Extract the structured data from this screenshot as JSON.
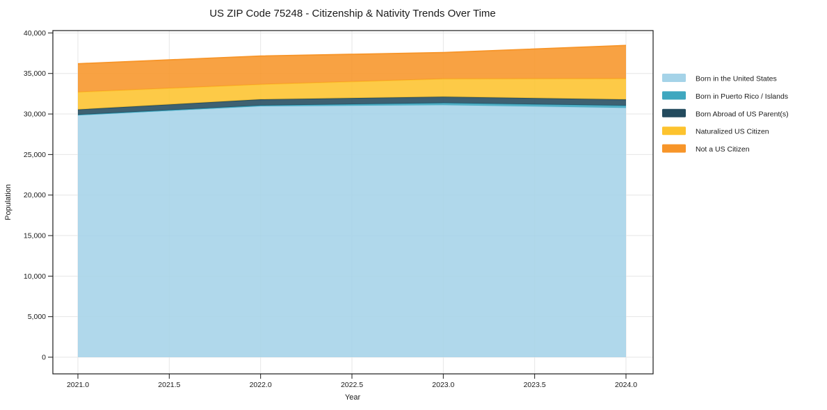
{
  "title": "US ZIP Code 75248 - Citizenship & Nativity Trends Over Time",
  "chart_data": {
    "type": "area",
    "stacked": true,
    "title": "US ZIP Code 75248 - Citizenship & Nativity Trends Over Time",
    "xlabel": "Year",
    "ylabel": "Population",
    "x": [
      2021,
      2022,
      2023,
      2024
    ],
    "series": [
      {
        "name": "Born in the United States",
        "color": "#a5d3e8",
        "values": [
          29850,
          30950,
          31100,
          30750
        ]
      },
      {
        "name": "Born in Puerto Rico / Islands",
        "color": "#3fa7bf",
        "values": [
          50,
          100,
          250,
          280
        ]
      },
      {
        "name": "Born Abroad of US Parent(s)",
        "color": "#234b5e",
        "values": [
          650,
          750,
          780,
          760
        ]
      },
      {
        "name": "Naturalized US Citizen",
        "color": "#fdc32e",
        "values": [
          2150,
          1850,
          2200,
          2570
        ]
      },
      {
        "name": "Not a US Citizen",
        "color": "#f79529",
        "values": [
          3500,
          3500,
          3250,
          4100
        ]
      }
    ],
    "stack_totals": [
      36200,
      37150,
      37580,
      38460
    ],
    "xlim": [
      2021.0,
      2024.0
    ],
    "ylim": [
      0,
      40000
    ],
    "xticks": [
      2021.0,
      2021.5,
      2022.0,
      2022.5,
      2023.0,
      2023.5,
      2024.0
    ],
    "yticks": [
      0,
      5000,
      10000,
      15000,
      20000,
      25000,
      30000,
      35000,
      40000
    ],
    "grid": true,
    "grid_color": "#e6e6e6",
    "axis_color": "#1a1a1a",
    "legend_position": "right",
    "legend_frame": false
  }
}
